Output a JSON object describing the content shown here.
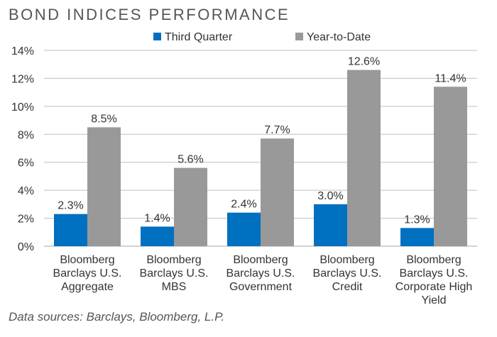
{
  "chart_data": {
    "type": "bar",
    "title": "BOND INDICES PERFORMANCE",
    "categories": [
      [
        "Bloomberg",
        "Barclays U.S.",
        "Aggregate"
      ],
      [
        "Bloomberg",
        "Barclays U.S.",
        "MBS"
      ],
      [
        "Bloomberg",
        "Barclays U.S.",
        "Government"
      ],
      [
        "Bloomberg",
        "Barclays U.S.",
        "Credit"
      ],
      [
        "Bloomberg",
        "Barclays U.S.",
        "Corporate High",
        "Yield"
      ]
    ],
    "series": [
      {
        "name": "Third Quarter",
        "values": [
          2.3,
          1.4,
          2.4,
          3.0,
          1.3
        ],
        "labels": [
          "2.3%",
          "1.4%",
          "2.4%",
          "3.0%",
          "1.3%"
        ],
        "color": "#0070c0"
      },
      {
        "name": "Year-to-Date",
        "values": [
          8.5,
          5.6,
          7.7,
          12.6,
          11.4
        ],
        "labels": [
          "8.5%",
          "5.6%",
          "7.7%",
          "12.6%",
          "11.4%"
        ],
        "color": "#999999"
      }
    ],
    "ylim": [
      0,
      14
    ],
    "yticks": [
      0,
      2,
      4,
      6,
      8,
      10,
      12,
      14
    ],
    "ytick_labels": [
      "0%",
      "2%",
      "4%",
      "6%",
      "8%",
      "10%",
      "12%",
      "14%"
    ],
    "grid": true,
    "legend_position": "top",
    "xlabel": "",
    "ylabel": "",
    "source_note": "Data sources: Barclays, Bloomberg, L.P."
  },
  "colors": {
    "title": "#555555",
    "grid": "#bfbfbf",
    "text": "#333333"
  }
}
